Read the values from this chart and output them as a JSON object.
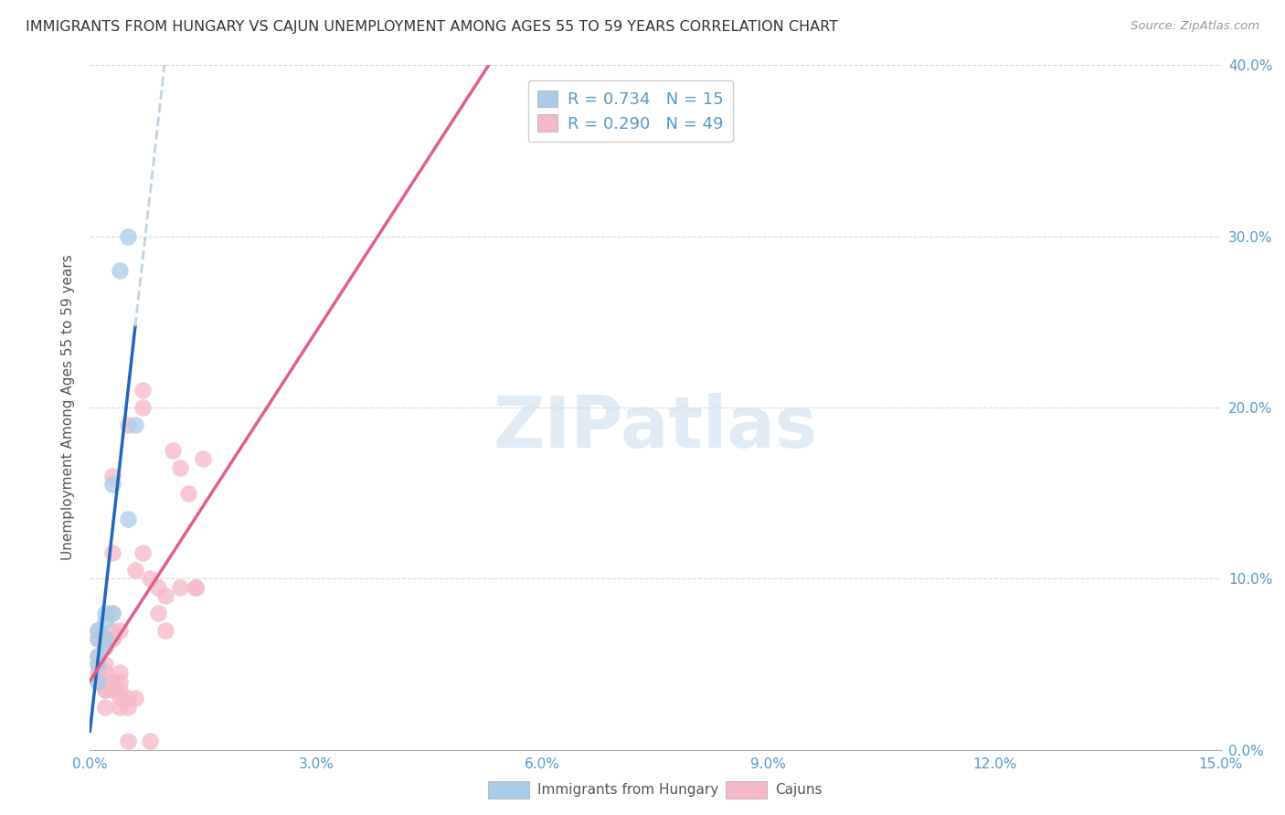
{
  "title": "IMMIGRANTS FROM HUNGARY VS CAJUN UNEMPLOYMENT AMONG AGES 55 TO 59 YEARS CORRELATION CHART",
  "source": "Source: ZipAtlas.com",
  "ylabel": "Unemployment Among Ages 55 to 59 years",
  "xlim": [
    0,
    0.15
  ],
  "ylim": [
    0,
    0.4
  ],
  "xticks": [
    0.0,
    0.03,
    0.06,
    0.09,
    0.12,
    0.15
  ],
  "yticks": [
    0.0,
    0.1,
    0.2,
    0.3,
    0.4
  ],
  "xtick_labels": [
    "0.0%",
    "3.0%",
    "6.0%",
    "9.0%",
    "12.0%",
    "15.0%"
  ],
  "ytick_labels_right": [
    "0.0%",
    "10.0%",
    "20.0%",
    "30.0%",
    "40.0%"
  ],
  "legend_line1": "R = 0.734   N = 15",
  "legend_line2": "R = 0.290   N = 49",
  "legend_labels_bottom": [
    "Immigrants from Hungary",
    "Cajuns"
  ],
  "hungary_color": "#aacce8",
  "cajun_color": "#f5b8c8",
  "hungary_line_color": "#2266bb",
  "cajun_line_color": "#e06080",
  "trend_extension_color": "#b8cfe0",
  "background_color": "#ffffff",
  "grid_color": "#cccccc",
  "title_color": "#333333",
  "tick_color": "#5599cc",
  "hungary_points": [
    [
      0.001,
      0.065
    ],
    [
      0.001,
      0.055
    ],
    [
      0.001,
      0.07
    ],
    [
      0.001,
      0.04
    ],
    [
      0.001,
      0.05
    ],
    [
      0.002,
      0.065
    ],
    [
      0.002,
      0.075
    ],
    [
      0.002,
      0.08
    ],
    [
      0.002,
      0.06
    ],
    [
      0.003,
      0.155
    ],
    [
      0.003,
      0.08
    ],
    [
      0.004,
      0.28
    ],
    [
      0.005,
      0.3
    ],
    [
      0.005,
      0.135
    ],
    [
      0.006,
      0.19
    ]
  ],
  "cajun_points": [
    [
      0.001,
      0.055
    ],
    [
      0.001,
      0.045
    ],
    [
      0.001,
      0.05
    ],
    [
      0.001,
      0.04
    ],
    [
      0.001,
      0.065
    ],
    [
      0.001,
      0.07
    ],
    [
      0.002,
      0.04
    ],
    [
      0.002,
      0.05
    ],
    [
      0.002,
      0.035
    ],
    [
      0.002,
      0.06
    ],
    [
      0.002,
      0.045
    ],
    [
      0.002,
      0.035
    ],
    [
      0.002,
      0.025
    ],
    [
      0.003,
      0.035
    ],
    [
      0.003,
      0.065
    ],
    [
      0.003,
      0.04
    ],
    [
      0.003,
      0.08
    ],
    [
      0.003,
      0.065
    ],
    [
      0.003,
      0.07
    ],
    [
      0.003,
      0.16
    ],
    [
      0.003,
      0.115
    ],
    [
      0.004,
      0.03
    ],
    [
      0.004,
      0.07
    ],
    [
      0.004,
      0.035
    ],
    [
      0.004,
      0.04
    ],
    [
      0.004,
      0.045
    ],
    [
      0.004,
      0.025
    ],
    [
      0.005,
      0.025
    ],
    [
      0.005,
      0.03
    ],
    [
      0.005,
      0.005
    ],
    [
      0.005,
      0.19
    ],
    [
      0.006,
      0.105
    ],
    [
      0.006,
      0.03
    ],
    [
      0.007,
      0.2
    ],
    [
      0.007,
      0.21
    ],
    [
      0.007,
      0.115
    ],
    [
      0.008,
      0.005
    ],
    [
      0.008,
      0.1
    ],
    [
      0.009,
      0.095
    ],
    [
      0.009,
      0.08
    ],
    [
      0.01,
      0.07
    ],
    [
      0.01,
      0.09
    ],
    [
      0.011,
      0.175
    ],
    [
      0.012,
      0.165
    ],
    [
      0.012,
      0.095
    ],
    [
      0.013,
      0.15
    ],
    [
      0.014,
      0.095
    ],
    [
      0.014,
      0.095
    ],
    [
      0.015,
      0.17
    ]
  ]
}
